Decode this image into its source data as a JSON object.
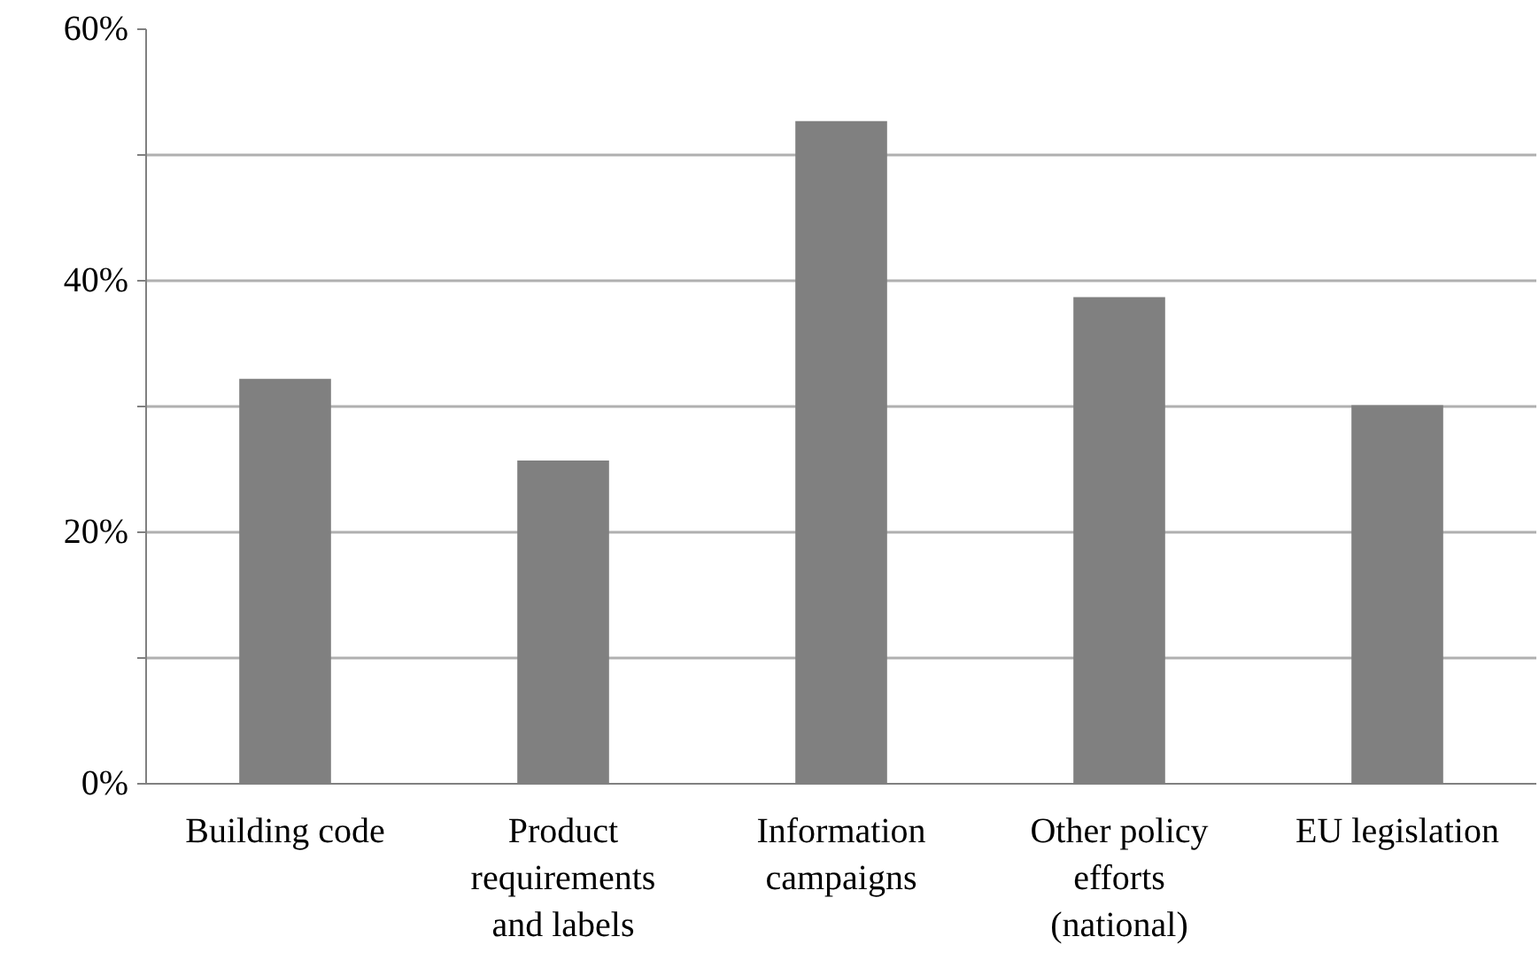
{
  "chart_data": {
    "type": "bar",
    "categories": [
      "Building code",
      "Product requirements and labels",
      "Information campaigns",
      "Other policy efforts (national)",
      "EU legislation"
    ],
    "values": [
      32.2,
      25.7,
      52.7,
      38.7,
      30.1
    ],
    "color": "#808080",
    "ylim": [
      0,
      60
    ],
    "yticks": [
      {
        "value": 0,
        "label": "0%"
      },
      {
        "value": 10,
        "label": null
      },
      {
        "value": 20,
        "label": "20%"
      },
      {
        "value": 30,
        "label": null
      },
      {
        "value": 40,
        "label": "40%"
      },
      {
        "value": 50,
        "label": null
      },
      {
        "value": 60,
        "label": "60%"
      }
    ],
    "grid": "y"
  }
}
